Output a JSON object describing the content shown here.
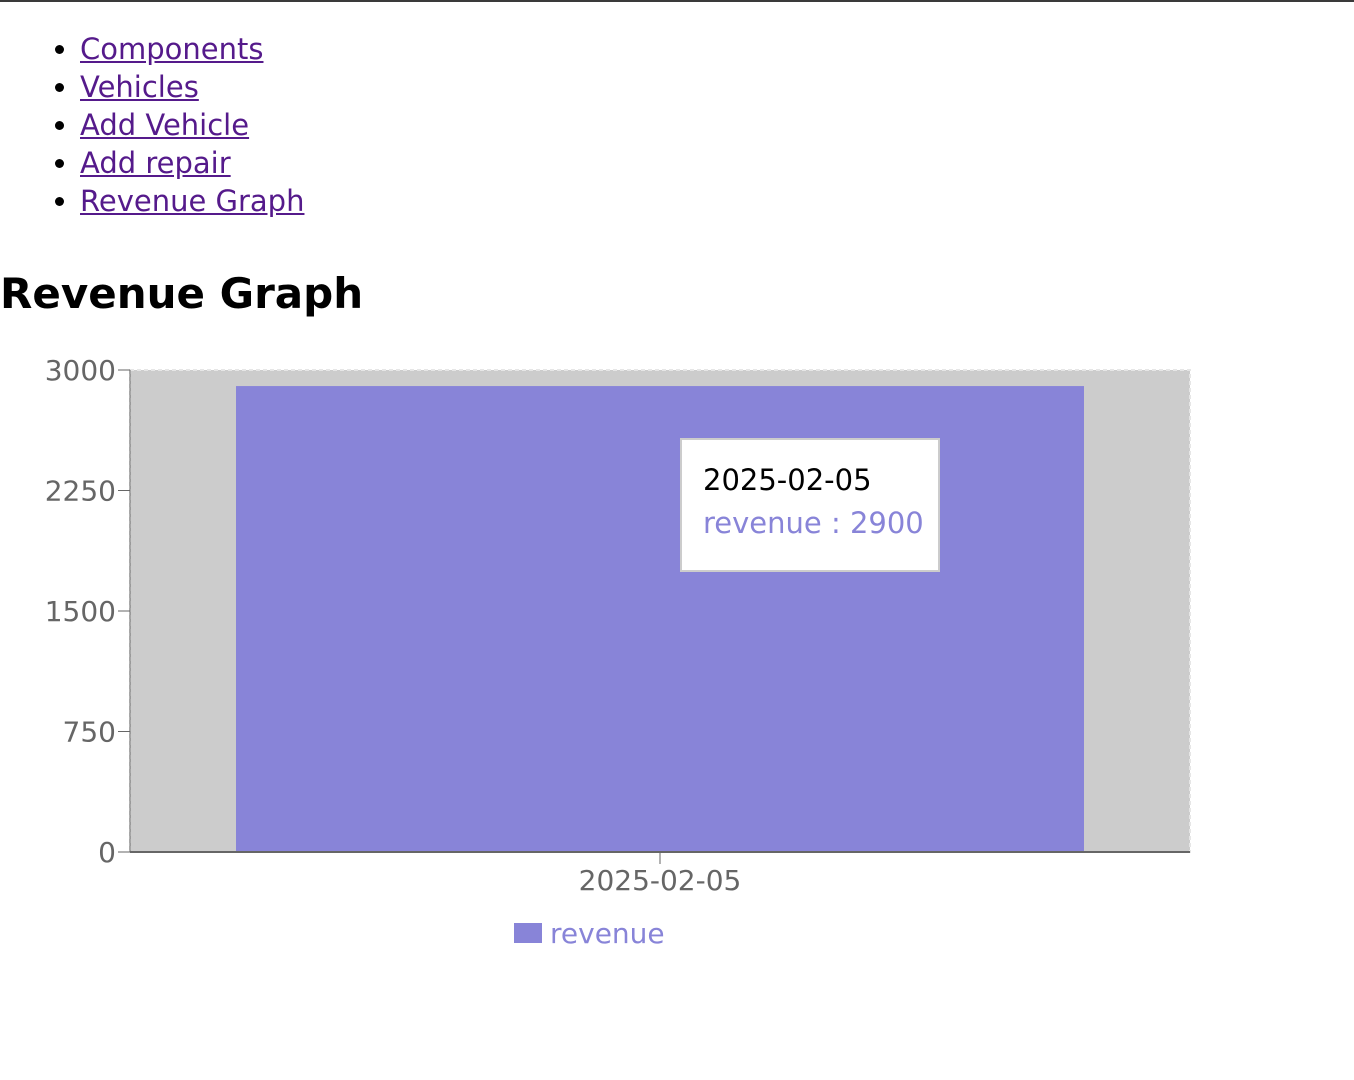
{
  "nav": {
    "items": [
      {
        "label": "Components"
      },
      {
        "label": "Vehicles"
      },
      {
        "label": "Add Vehicle"
      },
      {
        "label": "Add repair"
      },
      {
        "label": "Revenue Graph"
      }
    ]
  },
  "page": {
    "title": "Revenue Graph"
  },
  "colors": {
    "bar": "#8884d8",
    "cursor_highlight": "#cccccc",
    "link": "#551a8b",
    "axis": "#666666"
  },
  "tooltip": {
    "label": "2025-02-05",
    "item_name": "revenue",
    "separator": " : ",
    "item_value": "2900"
  },
  "legend": {
    "label": "revenue",
    "placement": "bottom-center"
  },
  "chart_data": {
    "type": "bar",
    "categories": [
      "2025-02-05"
    ],
    "series": [
      {
        "name": "revenue",
        "values": [
          2900
        ]
      }
    ],
    "ylim": [
      0,
      3000
    ],
    "yticks": [
      0,
      750,
      1500,
      2250,
      3000
    ],
    "grid": false
  }
}
